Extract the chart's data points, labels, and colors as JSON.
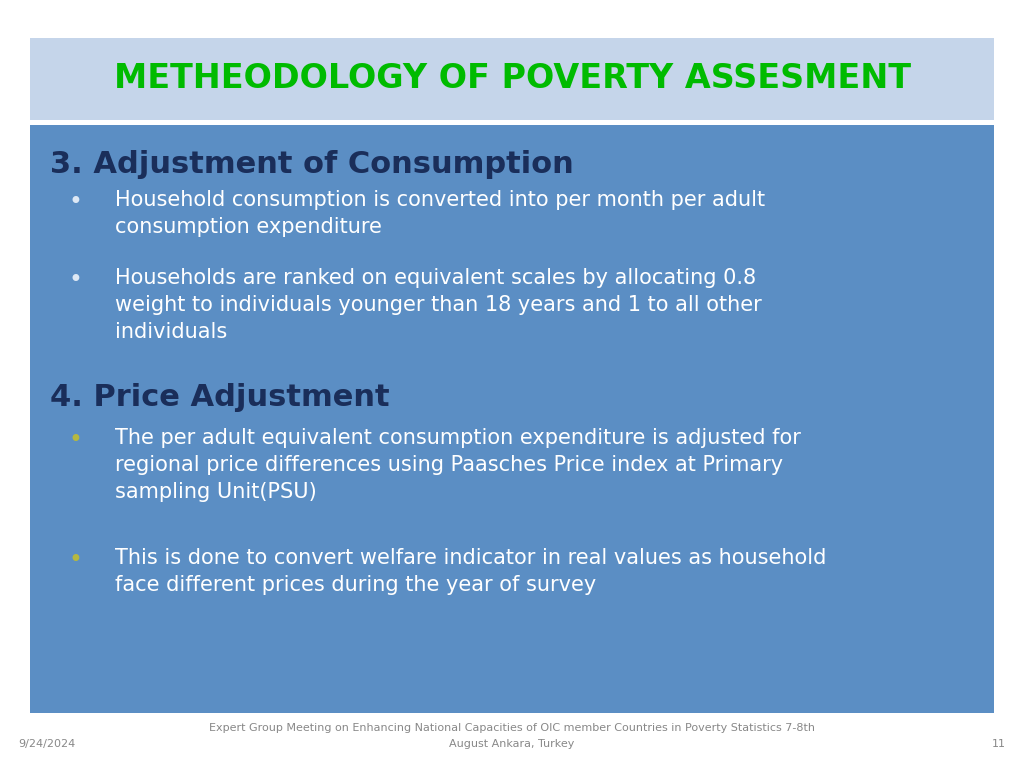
{
  "title": "METHEODOLOGY OF POVERTY ASSESMENT",
  "title_color": "#00bb00",
  "title_bg_color": "#c5d5ea",
  "main_bg_color": "#5b8ec4",
  "slide_bg_color": "#ffffff",
  "heading1": "3. Adjustment of Consumption",
  "heading1_color": "#1a2e5a",
  "bullets1": [
    "Household consumption is converted into per month per adult\nconsumption expenditure",
    "Households are ranked on equivalent scales by allocating 0.8\nweight to individuals younger than 18 years and 1 to all other\nindividuals"
  ],
  "heading2": "4. Price Adjustment",
  "heading2_color": "#1a2e5a",
  "bullets2": [
    "The per adult equivalent consumption expenditure is adjusted for\nregional price differences using Paasches Price index at Primary\nsampling Unit(PSU)",
    "This is done to convert welfare indicator in real values as household\nface different prices during the year of survey"
  ],
  "bullet_color": "#ffffff",
  "bullet_dot_color1": "#dde8f5",
  "bullet_dot_color2": "#b5b840",
  "footer_line1": "Expert Group Meeting on Enhancing National Capacities of OIC member Countries in Poverty Statistics 7-8th",
  "footer_line2": "August Ankara, Turkey",
  "footer_date": "9/24/2024",
  "footer_page": "11",
  "footer_color": "#888888",
  "title_fontsize": 24,
  "heading_fontsize": 22,
  "bullet_fontsize": 15
}
